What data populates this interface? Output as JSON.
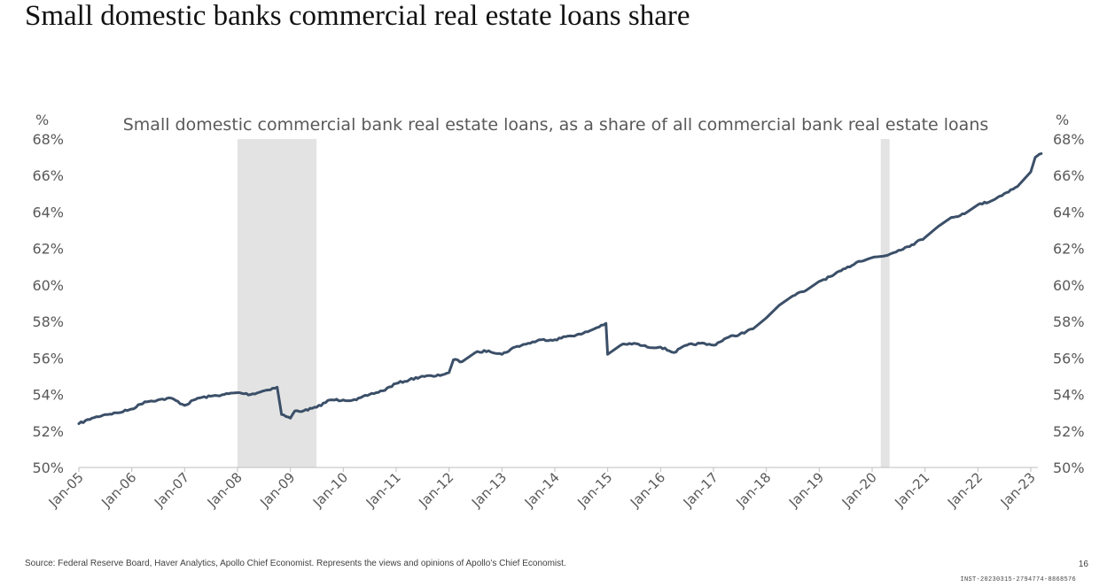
{
  "page": {
    "title": "Small domestic banks commercial real estate loans share",
    "source": "Source: Federal Reserve Board, Haver Analytics, Apollo Chief Economist. Represents the views and opinions of Apollo’s Chief Economist.",
    "page_number": "16",
    "doc_id": "INST-20230315-2794774-8868576"
  },
  "chart_data": {
    "type": "line",
    "title": "Small domestic commercial bank real estate loans, as a share of all commercial bank real estate loans",
    "y_unit_left": "%",
    "y_unit_right": "%",
    "xlim": [
      "2005-01-01",
      "2023-03-15"
    ],
    "ylim": [
      50,
      68
    ],
    "x_tick_labels": [
      "Jan-05",
      "Jan-06",
      "Jan-07",
      "Jan-08",
      "Jan-09",
      "Jan-10",
      "Jan-11",
      "Jan-12",
      "Jan-13",
      "Jan-14",
      "Jan-15",
      "Jan-16",
      "Jan-17",
      "Jan-18",
      "Jan-19",
      "Jan-20",
      "Jan-21",
      "Jan-22",
      "Jan-23"
    ],
    "y_tick_labels": [
      "50%",
      "52%",
      "54%",
      "56%",
      "58%",
      "60%",
      "62%",
      "64%",
      "66%",
      "68%"
    ],
    "grid": false,
    "line_color": "#3b4f68",
    "recession_color": "#e3e3e3",
    "recessions": [
      {
        "start": "2008-01-01",
        "end": "2009-06-30"
      },
      {
        "start": "2020-03-01",
        "end": "2020-05-01"
      }
    ],
    "series": [
      {
        "x": [
          "2005-01-01",
          "2005-04-01",
          "2005-07-01",
          "2005-10-01",
          "2006-01-01",
          "2006-04-01",
          "2006-07-01",
          "2006-10-01",
          "2007-01-01",
          "2007-04-01",
          "2007-07-01",
          "2007-10-01",
          "2008-01-01",
          "2008-04-01",
          "2008-07-01",
          "2008-10-01",
          "2008-11-01",
          "2009-01-01",
          "2009-02-01",
          "2009-04-01",
          "2009-07-01",
          "2009-10-01",
          "2010-01-01",
          "2010-04-01",
          "2010-07-01",
          "2010-10-01",
          "2011-01-01",
          "2011-04-01",
          "2011-07-01",
          "2011-10-01",
          "2012-01-01",
          "2012-02-01",
          "2012-04-01",
          "2012-07-01",
          "2012-10-01",
          "2013-01-01",
          "2013-04-01",
          "2013-07-01",
          "2013-10-01",
          "2014-01-01",
          "2014-04-01",
          "2014-07-01",
          "2014-10-01",
          "2014-12-20",
          "2015-01-01",
          "2015-04-01",
          "2015-07-01",
          "2015-10-01",
          "2016-01-01",
          "2016-04-01",
          "2016-07-01",
          "2016-10-01",
          "2017-01-01",
          "2017-04-01",
          "2017-07-01",
          "2017-10-01",
          "2018-01-01",
          "2018-04-01",
          "2018-07-01",
          "2018-10-01",
          "2019-01-01",
          "2019-04-01",
          "2019-07-01",
          "2019-10-01",
          "2020-01-01",
          "2020-04-01",
          "2020-07-01",
          "2020-10-01",
          "2021-01-01",
          "2021-04-01",
          "2021-07-01",
          "2021-10-01",
          "2022-01-01",
          "2022-04-01",
          "2022-07-01",
          "2022-10-01",
          "2023-01-01",
          "2023-02-01",
          "2023-03-15"
        ],
        "y": [
          52.4,
          52.7,
          52.9,
          53.0,
          53.2,
          53.6,
          53.7,
          53.8,
          53.4,
          53.8,
          53.9,
          54.0,
          54.1,
          54.0,
          54.2,
          54.4,
          52.9,
          52.7,
          53.1,
          53.1,
          53.3,
          53.7,
          53.7,
          53.7,
          54.0,
          54.2,
          54.6,
          54.8,
          55.0,
          55.0,
          55.2,
          55.9,
          55.8,
          56.3,
          56.4,
          56.2,
          56.6,
          56.8,
          57.0,
          57.0,
          57.2,
          57.3,
          57.6,
          57.9,
          56.2,
          56.7,
          56.8,
          56.6,
          56.6,
          56.3,
          56.7,
          56.8,
          56.7,
          57.1,
          57.3,
          57.6,
          58.2,
          58.9,
          59.4,
          59.7,
          60.2,
          60.5,
          60.9,
          61.3,
          61.5,
          61.6,
          61.9,
          62.2,
          62.6,
          63.2,
          63.7,
          63.9,
          64.4,
          64.6,
          65.0,
          65.4,
          66.2,
          67.0,
          67.2
        ]
      }
    ]
  }
}
